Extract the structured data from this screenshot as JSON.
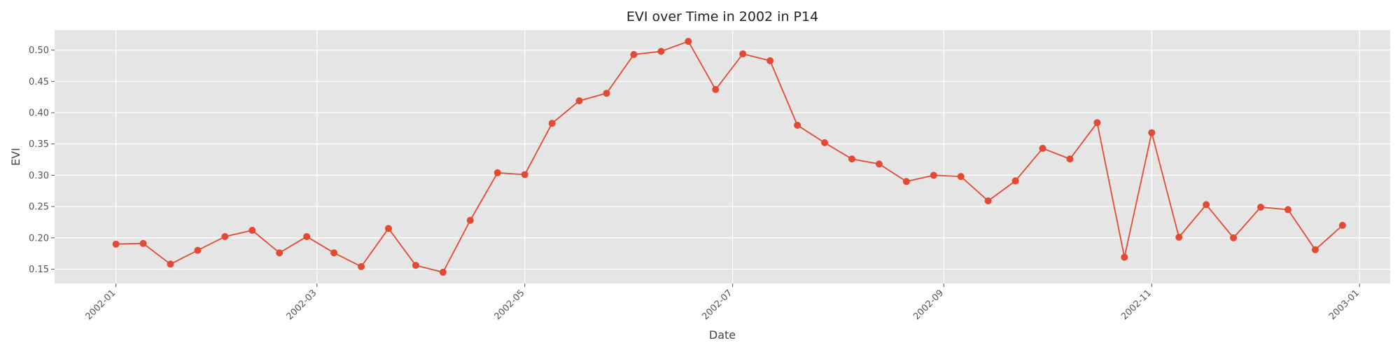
{
  "chart_data": {
    "type": "line",
    "title": "EVI over Time in 2002 in P14",
    "xlabel": "Date",
    "ylabel": "EVI",
    "grid": true,
    "legend": "none",
    "xlim": [
      "2001-12-14",
      "2003-01-10"
    ],
    "ylim": [
      0.127,
      0.532
    ],
    "x_ticks": [
      "2002-01-01",
      "2002-03-01",
      "2002-05-01",
      "2002-07-01",
      "2002-09-01",
      "2002-11-01",
      "2003-01-01"
    ],
    "x_tick_labels": [
      "2002-01",
      "2002-03",
      "2002-05",
      "2002-07",
      "2002-09",
      "2002-11",
      "2003-01"
    ],
    "y_ticks": [
      0.15,
      0.2,
      0.25,
      0.3,
      0.35,
      0.4,
      0.45,
      0.5
    ],
    "y_tick_labels": [
      "0.15",
      "0.20",
      "0.25",
      "0.30",
      "0.35",
      "0.40",
      "0.45",
      "0.50"
    ],
    "colors": {
      "line": "#E24A33",
      "plot_bg": "#E5E5E5",
      "grid": "#FFFFFF"
    },
    "series": [
      {
        "x": [
          "2002-01-01",
          "2002-01-09",
          "2002-01-17",
          "2002-01-25",
          "2002-02-02",
          "2002-02-10",
          "2002-02-18",
          "2002-02-26",
          "2002-03-06",
          "2002-03-14",
          "2002-03-22",
          "2002-03-30",
          "2002-04-07",
          "2002-04-15",
          "2002-04-23",
          "2002-05-01",
          "2002-05-09",
          "2002-05-17",
          "2002-05-25",
          "2002-06-02",
          "2002-06-10",
          "2002-06-18",
          "2002-06-26",
          "2002-07-04",
          "2002-07-12",
          "2002-07-20",
          "2002-07-28",
          "2002-08-05",
          "2002-08-13",
          "2002-08-21",
          "2002-08-29",
          "2002-09-06",
          "2002-09-14",
          "2002-09-22",
          "2002-09-30",
          "2002-10-08",
          "2002-10-16",
          "2002-10-24",
          "2002-11-01",
          "2002-11-09",
          "2002-11-17",
          "2002-11-25",
          "2002-12-03",
          "2002-12-11",
          "2002-12-19",
          "2002-12-27"
        ],
        "values": [
          0.19,
          0.191,
          0.158,
          0.18,
          0.202,
          0.212,
          0.176,
          0.202,
          0.176,
          0.154,
          0.215,
          0.156,
          0.145,
          0.228,
          0.304,
          0.301,
          0.383,
          0.419,
          0.431,
          0.493,
          0.498,
          0.514,
          0.437,
          0.494,
          0.483,
          0.38,
          0.352,
          0.326,
          0.318,
          0.29,
          0.3,
          0.298,
          0.259,
          0.291,
          0.343,
          0.326,
          0.384,
          0.169,
          0.368,
          0.201,
          0.253,
          0.2,
          0.249,
          0.245,
          0.181,
          0.22
        ]
      }
    ]
  }
}
